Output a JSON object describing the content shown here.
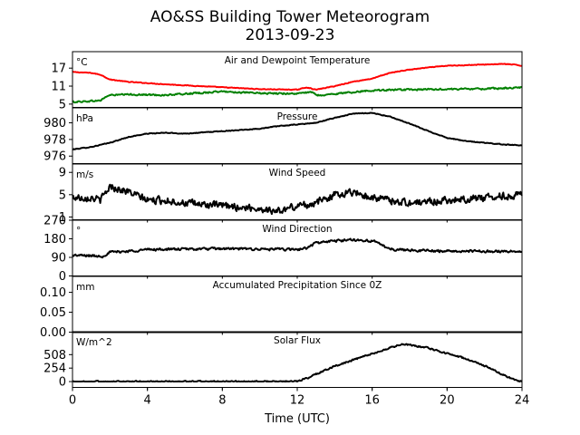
{
  "title": "AO&SS Building Tower Meteorogram",
  "subtitle": "2013-09-23",
  "chart_data": {
    "type": "line",
    "xlabel": "Time (UTC)",
    "xlim": [
      0,
      24
    ],
    "xticks": [
      "0",
      "4",
      "8",
      "12",
      "16",
      "20",
      "24"
    ],
    "grid": false,
    "panels": [
      {
        "key": "temperature",
        "title": "Air and Dewpoint Temperature",
        "unit": "°C",
        "ylim": [
          3.9,
          22.5
        ],
        "ytick_values": [
          5,
          11,
          17
        ],
        "ytick_labels": [
          "5",
          "11",
          "17"
        ],
        "series": [
          {
            "color": "#ff0000",
            "x": [
              0,
              1,
              1.5,
              2,
              3,
              5,
              8,
              10,
              12,
              12.5,
              13,
              14,
              15,
              16,
              16.5,
              17,
              18,
              19,
              20,
              21,
              22,
              23,
              23.5,
              24
            ],
            "values": [
              15.7,
              15.4,
              14.8,
              13.2,
              12.4,
              11.6,
              10.6,
              10.0,
              9.8,
              10.6,
              9.8,
              11.0,
              12.5,
              13.5,
              14.5,
              15.5,
              16.5,
              17.2,
              17.8,
              18.0,
              18.2,
              18.4,
              18.2,
              17.8
            ],
            "noise": 0.15
          },
          {
            "color": "#008000",
            "x": [
              0,
              1,
              1.5,
              1.8,
              2,
              3,
              5,
              8,
              10,
              12,
              12.7,
              13.2,
              14,
              16,
              18,
              20,
              22,
              24
            ],
            "values": [
              5.7,
              6.0,
              6.2,
              7.5,
              8.0,
              8.2,
              8.0,
              9.2,
              8.6,
              8.5,
              9.0,
              7.8,
              8.4,
              9.6,
              9.8,
              10.0,
              10.1,
              10.5
            ],
            "noise": 0.35
          }
        ]
      },
      {
        "key": "pressure",
        "title": "Pressure",
        "unit": "hPa",
        "ylim": [
          975.1,
          981.8
        ],
        "ytick_values": [
          976,
          978,
          980
        ],
        "ytick_labels": [
          "976",
          "978",
          "980"
        ],
        "series": [
          {
            "color": "#000000",
            "x": [
              0,
              1,
              2,
              3,
              4,
              5,
              6,
              8,
              10,
              11,
              12,
              13,
              14,
              15,
              16,
              17,
              18,
              19,
              20,
              21,
              22,
              23,
              24
            ],
            "values": [
              976.8,
              977.1,
              977.6,
              978.3,
              978.7,
              978.8,
              978.7,
              979.0,
              979.3,
              979.6,
              979.8,
              980.0,
              980.6,
              981.1,
              981.2,
              980.7,
              979.9,
              979.0,
              978.2,
              977.8,
              977.6,
              977.4,
              977.3
            ],
            "noise": 0.06
          }
        ]
      },
      {
        "key": "wind_speed",
        "title": "Wind Speed",
        "unit": "m/s",
        "ylim": [
          0.5,
          10.5
        ],
        "ytick_values": [
          1,
          5,
          9
        ],
        "ytick_labels": [
          "1",
          "5",
          "9"
        ],
        "series": [
          {
            "color": "#000000",
            "x": [
              0,
              1,
              1.5,
              2,
              3,
              4,
              5,
              6,
              8,
              10,
              11,
              12,
              13,
              14,
              15,
              16,
              17,
              18,
              20,
              22,
              24
            ],
            "values": [
              4.5,
              4.5,
              4.0,
              6.5,
              5.5,
              4.0,
              4.0,
              3.5,
              3.0,
              2.5,
              2.0,
              3.0,
              3.5,
              5.0,
              5.5,
              4.5,
              4.0,
              3.5,
              4.0,
              4.5,
              5.0
            ],
            "noise": 0.9
          }
        ]
      },
      {
        "key": "wind_direction",
        "title": "Wind Direction",
        "unit": "°",
        "ylim": [
          0,
          270
        ],
        "ytick_values": [
          0,
          90,
          180,
          270
        ],
        "ytick_labels": [
          "0",
          "90",
          "180",
          "270"
        ],
        "series": [
          {
            "color": "#000000",
            "x": [
              0,
              1,
              1.6,
              2,
              3,
              4,
              6,
              8,
              10,
              12,
              12.5,
              13,
              14,
              15,
              16,
              16.5,
              17,
              18,
              20,
              22,
              24
            ],
            "values": [
              100,
              98,
              95,
              115,
              120,
              128,
              130,
              132,
              130,
              128,
              135,
              160,
              170,
              175,
              170,
              150,
              130,
              125,
              120,
              120,
              118
            ],
            "noise": 8
          }
        ]
      },
      {
        "key": "precipitation",
        "title": "Accumulated Precipitation Since 0Z",
        "unit": "mm",
        "ylim": [
          0,
          0.14
        ],
        "ytick_values": [
          0.0,
          0.05,
          0.1
        ],
        "ytick_labels": [
          "0.00",
          "0.05",
          "0.10"
        ],
        "series": [
          {
            "color": "#000000",
            "x": [
              0,
              24
            ],
            "values": [
              0,
              0
            ],
            "noise": 0
          }
        ]
      },
      {
        "key": "solar_flux",
        "title": "Solar Flux",
        "unit": "W/m^2",
        "ylim": [
          -110,
          940
        ],
        "ytick_values": [
          0,
          254,
          508
        ],
        "ytick_labels": [
          "0",
          "254",
          "508"
        ],
        "series": [
          {
            "color": "#000000",
            "x": [
              0,
              11.8,
              12,
              12.5,
              13,
              14,
              15,
              16,
              17,
              17.5,
              18,
              19,
              20,
              21,
              22,
              23,
              23.5,
              24
            ],
            "values": [
              0,
              0,
              10,
              60,
              140,
              290,
              410,
              520,
              640,
              700,
              690,
              630,
              530,
              430,
              300,
              130,
              40,
              0
            ],
            "noise": 20
          }
        ]
      }
    ]
  }
}
